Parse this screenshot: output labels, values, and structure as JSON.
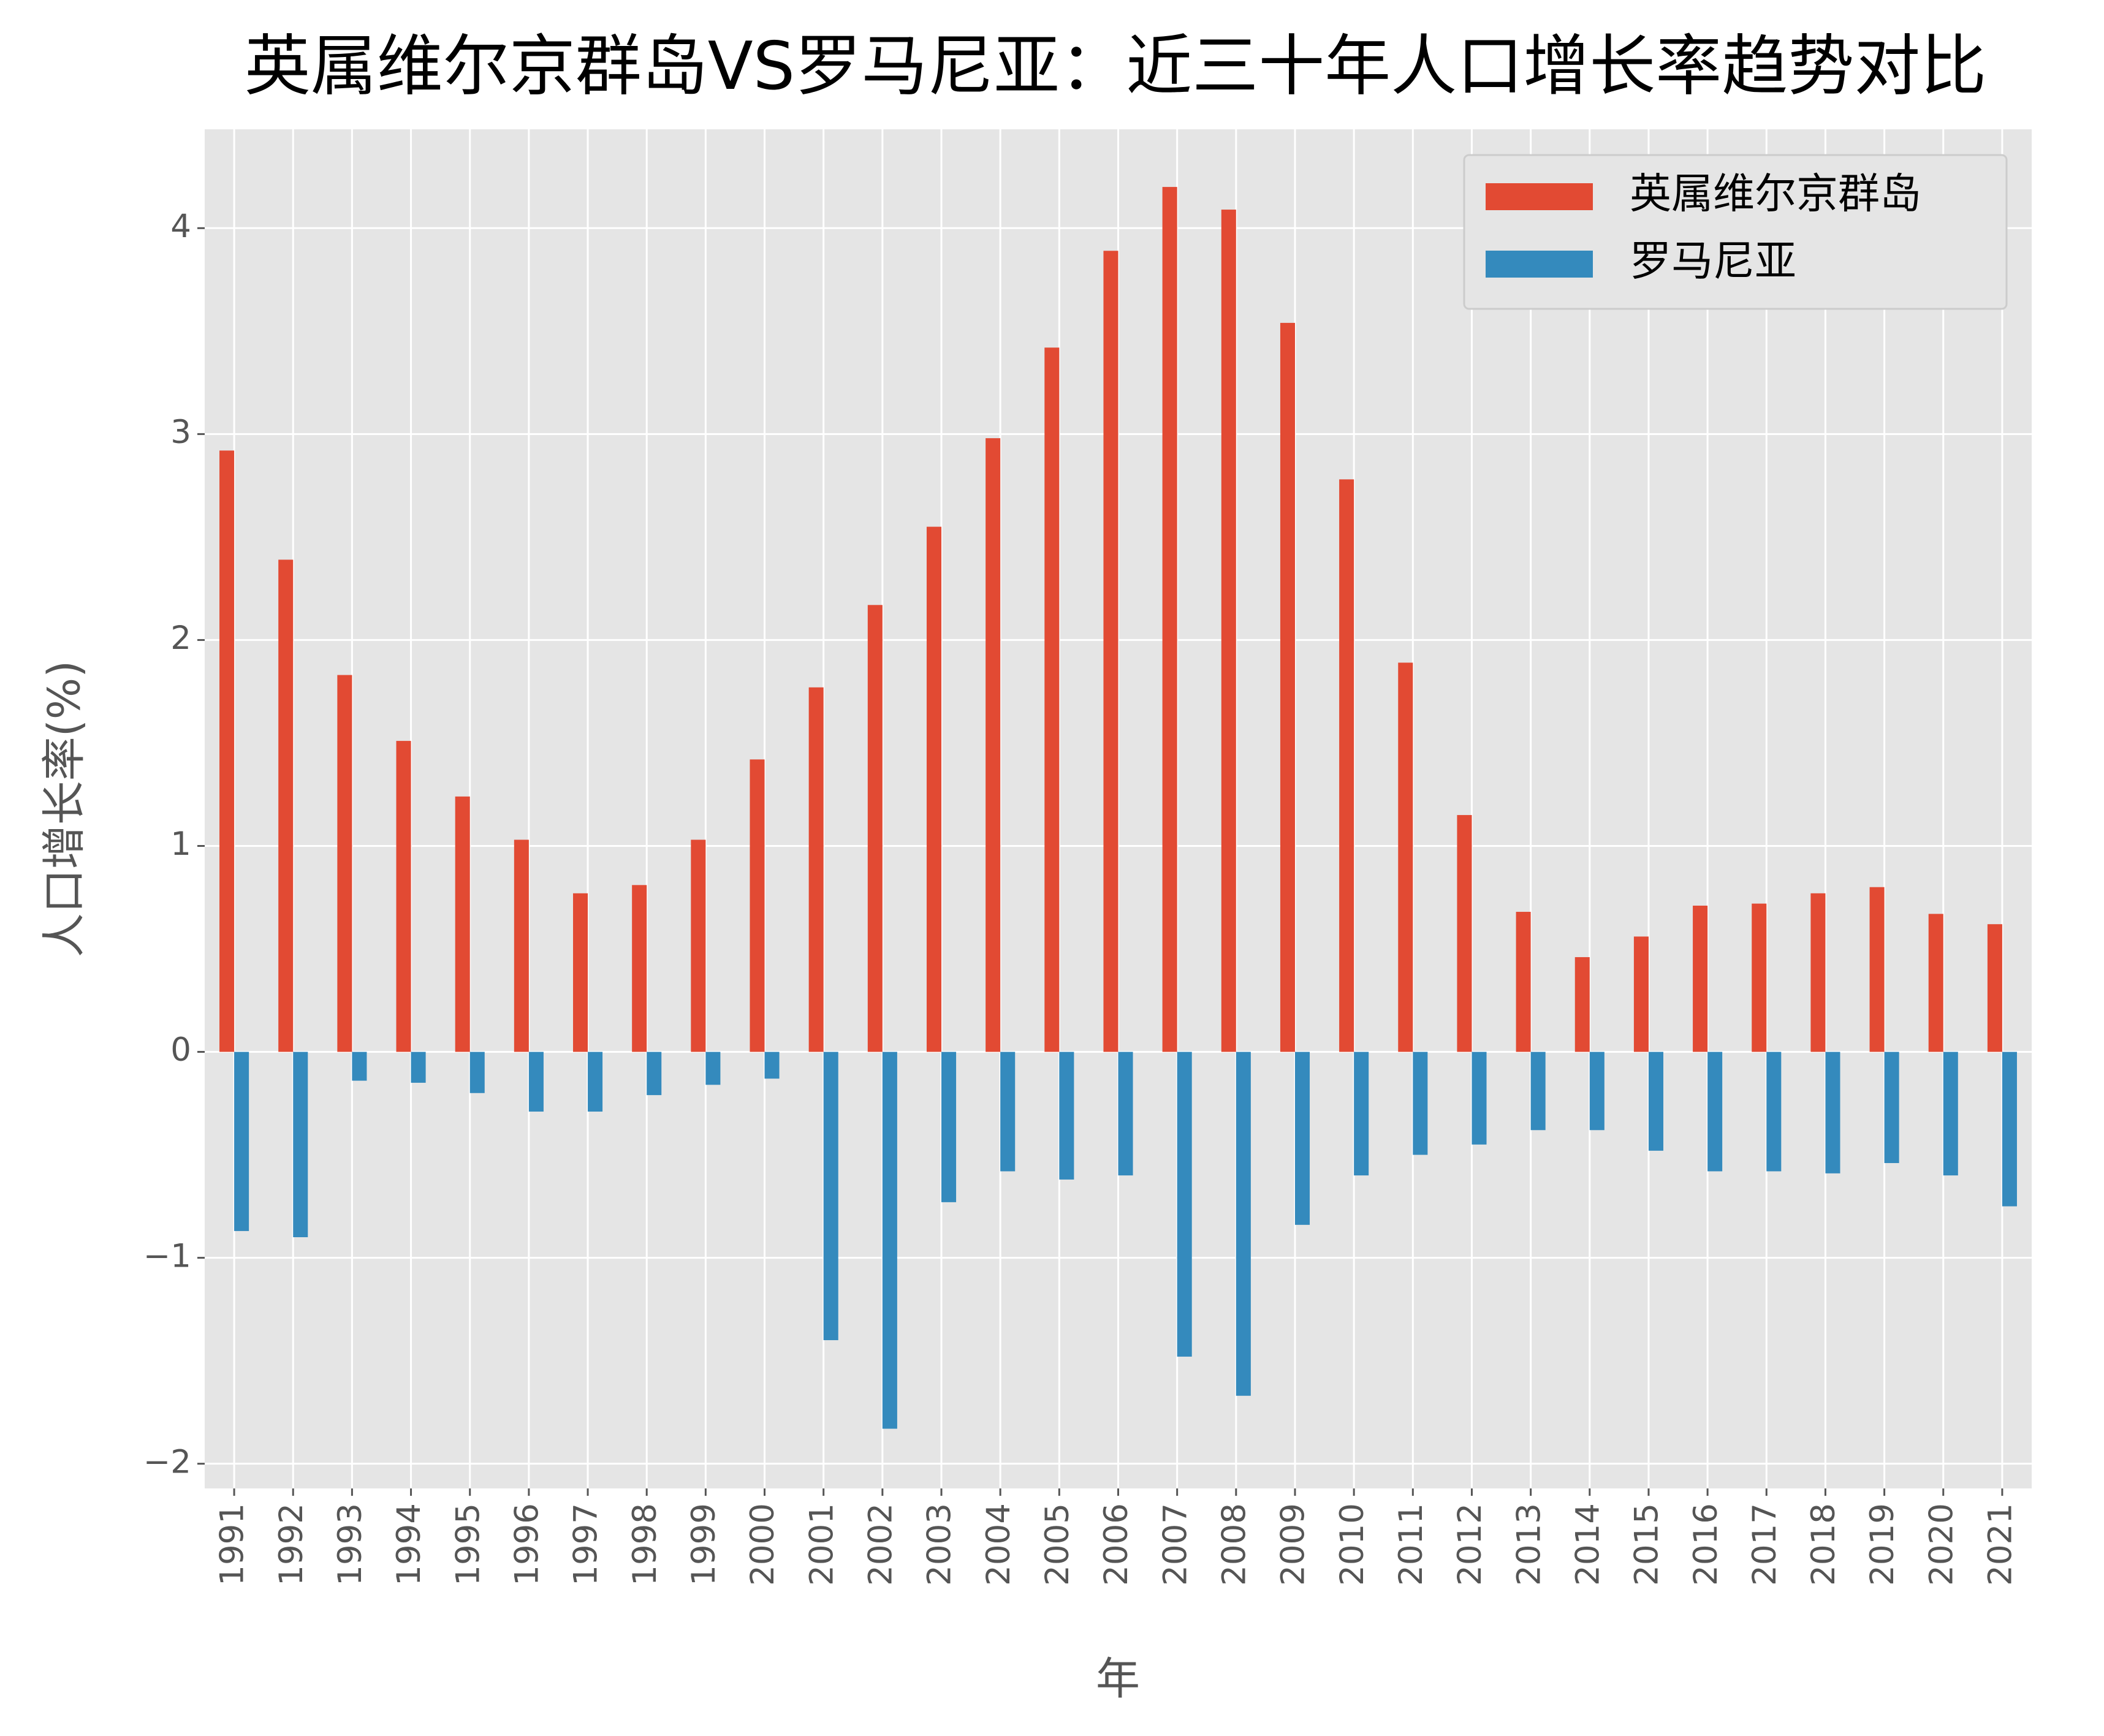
{
  "chart_data": {
    "type": "bar",
    "title": "英属维尔京群岛VS罗马尼亚：近三十年人口增长率趋势对比",
    "x_label": "年",
    "y_label": "人口增长率(%)",
    "categories": [
      "1991",
      "1992",
      "1993",
      "1994",
      "1995",
      "1996",
      "1997",
      "1998",
      "1999",
      "2000",
      "2001",
      "2002",
      "2003",
      "2004",
      "2005",
      "2006",
      "2007",
      "2008",
      "2009",
      "2010",
      "2011",
      "2012",
      "2013",
      "2014",
      "2015",
      "2016",
      "2017",
      "2018",
      "2019",
      "2020",
      "2021"
    ],
    "series": [
      {
        "name": "英属维尔京群岛",
        "color": "#e24a33",
        "values": [
          2.92,
          2.39,
          1.83,
          1.51,
          1.24,
          1.03,
          0.77,
          0.81,
          1.03,
          1.42,
          1.77,
          2.17,
          2.55,
          2.98,
          3.42,
          3.89,
          4.2,
          4.09,
          3.54,
          2.78,
          1.89,
          1.15,
          0.68,
          0.46,
          0.56,
          0.71,
          0.72,
          0.77,
          0.8,
          0.67,
          0.62
        ]
      },
      {
        "name": "罗马尼亚",
        "color": "#348abd",
        "values": [
          -0.87,
          -0.9,
          -0.14,
          -0.15,
          -0.2,
          -0.29,
          -0.29,
          -0.21,
          -0.16,
          -0.13,
          -1.4,
          -1.83,
          -0.73,
          -0.58,
          -0.62,
          -0.6,
          -1.48,
          -1.67,
          -0.84,
          -0.6,
          -0.5,
          -0.45,
          -0.38,
          -0.38,
          -0.48,
          -0.58,
          -0.58,
          -0.59,
          -0.54,
          -0.6,
          -0.75
        ]
      }
    ],
    "ylim": [
      -2.12,
      4.48
    ],
    "yticks": [
      {
        "value": -2,
        "label": "−2"
      },
      {
        "value": -1,
        "label": "−1"
      },
      0,
      1,
      2,
      3,
      4
    ],
    "grid": true,
    "legend": "upper right"
  }
}
